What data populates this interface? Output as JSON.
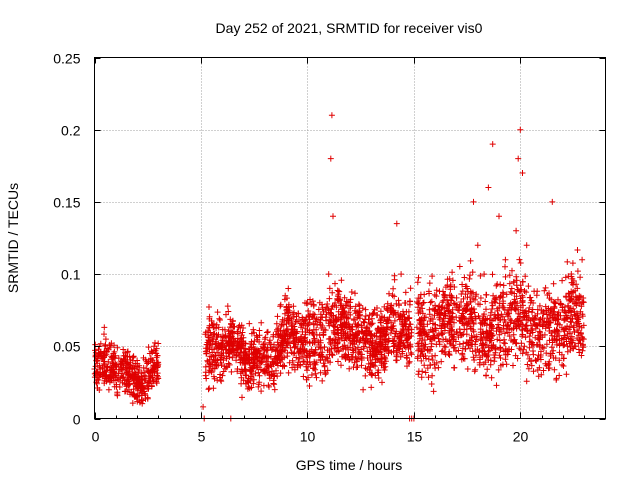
{
  "chart_data": {
    "type": "scatter",
    "title": "Day 252 of 2021, SRMTID for receiver vis0",
    "xlabel": "GPS time / hours",
    "ylabel": "SRMTID / TECUs",
    "xlim": [
      0,
      24
    ],
    "ylim": [
      0,
      0.25
    ],
    "xticks": [
      0,
      5,
      10,
      15,
      20
    ],
    "xtick_labels": [
      "0",
      "5",
      "10",
      "15",
      "20"
    ],
    "yticks": [
      0,
      0.05,
      0.1,
      0.15,
      0.2,
      0.25
    ],
    "ytick_labels": [
      "0",
      "0.05",
      "0.1",
      "0.15",
      "0.2",
      "0.25"
    ],
    "grid": true,
    "marker": "+",
    "series_color": "#e00000",
    "series": [
      {
        "name": "SRMTID",
        "description": "dense cloud of samples; values estimated from axes",
        "segments": [
          {
            "x_range": [
              0.0,
              3.0
            ],
            "baseline": 0.032,
            "spread": 0.012,
            "n": 420
          },
          {
            "x_range": [
              5.2,
              9.0
            ],
            "baseline": 0.045,
            "spread": 0.015,
            "n": 560
          },
          {
            "x_range": [
              9.0,
              14.9
            ],
            "baseline": 0.058,
            "spread": 0.018,
            "n": 900
          },
          {
            "x_range": [
              15.1,
              23.0
            ],
            "baseline": 0.065,
            "spread": 0.022,
            "n": 1100
          }
        ],
        "x": [
          0.1,
          0.3,
          0.5,
          0.8,
          1.0,
          1.2,
          1.5,
          1.8,
          2.0,
          2.3,
          2.6,
          2.8,
          5.3,
          5.6,
          5.9,
          6.3,
          6.7,
          7.1,
          7.5,
          8.0,
          8.4,
          8.8,
          9.1,
          9.5,
          9.9,
          10.3,
          10.7,
          11.0,
          11.1,
          11.15,
          11.2,
          11.3,
          11.6,
          12.0,
          12.5,
          13.0,
          13.5,
          14.0,
          14.2,
          14.4,
          14.6,
          15.2,
          15.5,
          16.0,
          16.5,
          17.0,
          17.5,
          17.8,
          18.0,
          18.3,
          18.5,
          18.7,
          19.0,
          19.3,
          19.6,
          19.8,
          19.9,
          20.0,
          20.1,
          20.3,
          20.6,
          21.0,
          21.3,
          21.5,
          21.8,
          22.2,
          22.6,
          22.9,
          5.1,
          5.15,
          6.4,
          14.8,
          14.9,
          15.0
        ],
        "y": [
          0.025,
          0.03,
          0.028,
          0.035,
          0.03,
          0.026,
          0.032,
          0.04,
          0.036,
          0.042,
          0.045,
          0.05,
          0.04,
          0.055,
          0.05,
          0.045,
          0.06,
          0.052,
          0.048,
          0.055,
          0.058,
          0.065,
          0.09,
          0.06,
          0.058,
          0.065,
          0.07,
          0.1,
          0.18,
          0.21,
          0.14,
          0.08,
          0.07,
          0.06,
          0.055,
          0.065,
          0.06,
          0.075,
          0.135,
          0.1,
          0.08,
          0.05,
          0.07,
          0.065,
          0.055,
          0.06,
          0.09,
          0.15,
          0.12,
          0.1,
          0.16,
          0.19,
          0.14,
          0.11,
          0.09,
          0.13,
          0.18,
          0.2,
          0.17,
          0.12,
          0.08,
          0.075,
          0.065,
          0.15,
          0.06,
          0.07,
          0.05,
          0.11,
          0.008,
          0.0,
          0.0,
          0.0,
          0.0,
          0.0
        ],
        "base_points": "listed x/y values are representative anchor samples"
      }
    ]
  }
}
